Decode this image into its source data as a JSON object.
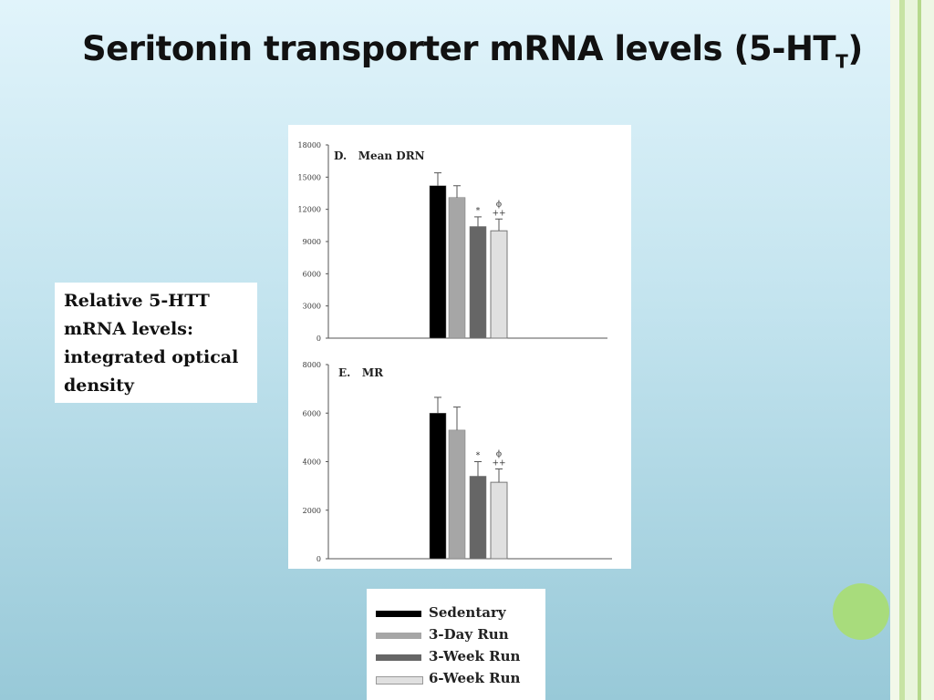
{
  "slide": {
    "title_main": "Seritonin transporter mRNA levels (5-HT",
    "title_sub": "T",
    "title_end": ")",
    "ylabel_text": "Relative 5-HTT mRNA levels: integrated optical density"
  },
  "legend": [
    {
      "label": "Sedentary",
      "color": "#000000"
    },
    {
      "label": "3-Day Run",
      "color": "#a6a6a6"
    },
    {
      "label": "3-Week Run",
      "color": "#666666"
    },
    {
      "label": "6-Week Run",
      "color": "#e0e0e0"
    }
  ],
  "chart_data": [
    {
      "type": "bar",
      "title": "D.   Mean DRN",
      "categories": [
        "Sedentary",
        "3-Day Run",
        "3-Week Run",
        "6-Week Run"
      ],
      "values": [
        14200,
        13100,
        10400,
        10000
      ],
      "errors": [
        1200,
        1100,
        900,
        1100
      ],
      "annotations": [
        "",
        "",
        "*",
        "ϕ\n++"
      ],
      "ylim": [
        0,
        18000
      ],
      "yticks": [
        0,
        3000,
        6000,
        9000,
        12000,
        15000,
        18000
      ],
      "ytick_labels": [
        "0",
        "3000",
        "6000",
        "9000",
        "12000",
        "15000",
        "18000"
      ],
      "colors": [
        "#000000",
        "#a6a6a6",
        "#666666",
        "#e0e0e0"
      ]
    },
    {
      "type": "bar",
      "title": "E.   MR",
      "categories": [
        "Sedentary",
        "3-Day Run",
        "3-Week Run",
        "6-Week Run"
      ],
      "values": [
        6000,
        5300,
        3400,
        3150
      ],
      "errors": [
        650,
        950,
        600,
        550
      ],
      "annotations": [
        "",
        "",
        "*",
        "ϕ\n++"
      ],
      "ylim": [
        0,
        8000
      ],
      "yticks": [
        0,
        2000,
        4000,
        6000,
        8000
      ],
      "ytick_labels": [
        "0",
        "2000",
        "4000",
        "6000",
        "8000"
      ],
      "colors": [
        "#000000",
        "#a6a6a6",
        "#666666",
        "#e0e0e0"
      ]
    }
  ]
}
